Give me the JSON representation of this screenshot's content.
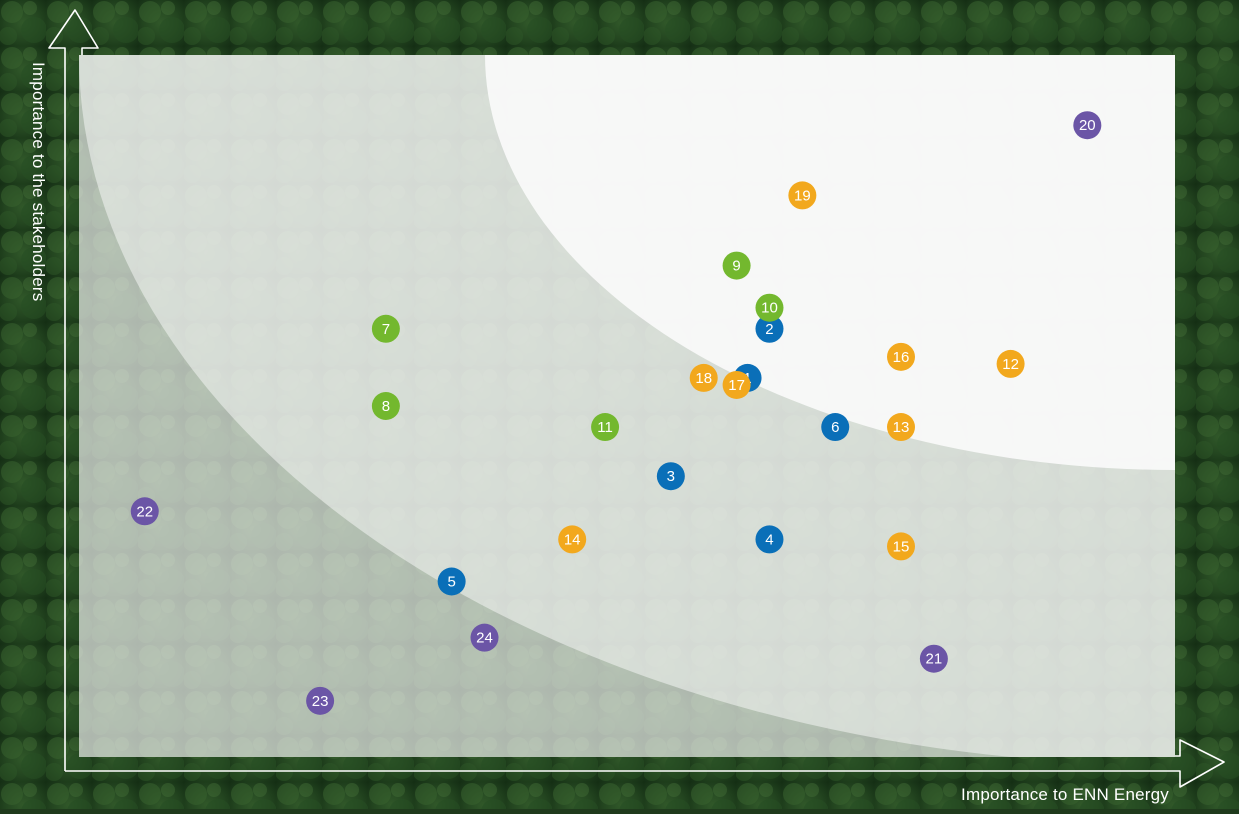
{
  "chart_data": {
    "type": "scatter",
    "xlabel": "Importance to ENN Energy",
    "ylabel": "Importance to the stakeholders",
    "colors": {
      "blue": "#0a6fb8",
      "green": "#73b82e",
      "orange": "#f2a81d",
      "purple": "#6b55a6"
    },
    "points": [
      {
        "label": "1",
        "x": 0.61,
        "y": 0.54,
        "color": "blue"
      },
      {
        "label": "2",
        "x": 0.63,
        "y": 0.61,
        "color": "blue"
      },
      {
        "label": "3",
        "x": 0.54,
        "y": 0.4,
        "color": "blue"
      },
      {
        "label": "4",
        "x": 0.63,
        "y": 0.31,
        "color": "blue"
      },
      {
        "label": "5",
        "x": 0.34,
        "y": 0.25,
        "color": "blue"
      },
      {
        "label": "6",
        "x": 0.69,
        "y": 0.47,
        "color": "blue"
      },
      {
        "label": "7",
        "x": 0.28,
        "y": 0.61,
        "color": "green"
      },
      {
        "label": "8",
        "x": 0.28,
        "y": 0.5,
        "color": "green"
      },
      {
        "label": "9",
        "x": 0.6,
        "y": 0.7,
        "color": "green"
      },
      {
        "label": "10",
        "x": 0.63,
        "y": 0.64,
        "color": "green"
      },
      {
        "label": "11",
        "x": 0.48,
        "y": 0.47,
        "color": "green"
      },
      {
        "label": "12",
        "x": 0.85,
        "y": 0.56,
        "color": "orange"
      },
      {
        "label": "13",
        "x": 0.75,
        "y": 0.47,
        "color": "orange"
      },
      {
        "label": "14",
        "x": 0.45,
        "y": 0.31,
        "color": "orange"
      },
      {
        "label": "15",
        "x": 0.75,
        "y": 0.3,
        "color": "orange"
      },
      {
        "label": "16",
        "x": 0.75,
        "y": 0.57,
        "color": "orange"
      },
      {
        "label": "17",
        "x": 0.6,
        "y": 0.53,
        "color": "orange"
      },
      {
        "label": "18",
        "x": 0.57,
        "y": 0.54,
        "color": "orange"
      },
      {
        "label": "19",
        "x": 0.66,
        "y": 0.8,
        "color": "orange"
      },
      {
        "label": "20",
        "x": 0.92,
        "y": 0.9,
        "color": "purple"
      },
      {
        "label": "21",
        "x": 0.78,
        "y": 0.14,
        "color": "purple"
      },
      {
        "label": "22",
        "x": 0.06,
        "y": 0.35,
        "color": "purple"
      },
      {
        "label": "23",
        "x": 0.22,
        "y": 0.08,
        "color": "purple"
      },
      {
        "label": "24",
        "x": 0.37,
        "y": 0.17,
        "color": "purple"
      }
    ],
    "xlim": [
      0,
      1
    ],
    "ylim": [
      0,
      1
    ],
    "grid": false,
    "legend": "none"
  }
}
